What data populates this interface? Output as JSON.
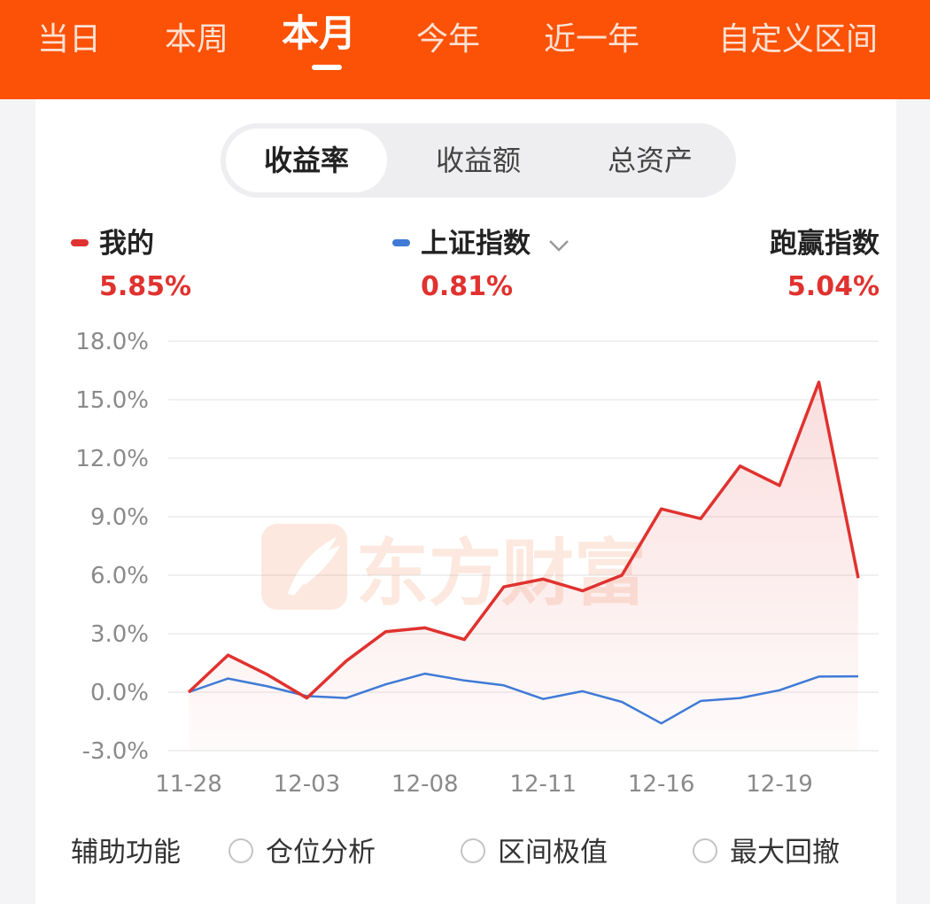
{
  "tabs": [
    {
      "label": "当日",
      "active": false
    },
    {
      "label": "本周",
      "active": false
    },
    {
      "label": "本月",
      "active": true
    },
    {
      "label": "今年",
      "active": false
    },
    {
      "label": "近一年",
      "active": false
    },
    {
      "label": "自定义区间",
      "active": false
    }
  ],
  "segments": [
    {
      "label": "收益率",
      "active": true
    },
    {
      "label": "收益额",
      "active": false
    },
    {
      "label": "总资产",
      "active": false
    }
  ],
  "legend": {
    "mine": {
      "label": "我的",
      "value": "5.85%",
      "color": "#e0322f"
    },
    "index": {
      "label": "上证指数",
      "value": "0.81%",
      "color": "#3f7ad6"
    },
    "beat": {
      "label": "跑赢指数",
      "value": "5.04%"
    }
  },
  "watermark": "东方财富",
  "auxiliary": {
    "title": "辅助功能",
    "options": [
      "仓位分析",
      "区间极值",
      "最大回撤"
    ]
  },
  "colors": {
    "brand": "#fb5207",
    "mine": "#e0322f",
    "index": "#3f7ad6"
  },
  "chart_data": {
    "type": "line",
    "ylim": [
      -3.0,
      18.0
    ],
    "yticks": [
      "18.0%",
      "15.0%",
      "12.0%",
      "9.0%",
      "6.0%",
      "3.0%",
      "0.0%",
      "-3.0%"
    ],
    "xticks": [
      "11-28",
      "12-03",
      "12-08",
      "12-11",
      "12-16",
      "12-19"
    ],
    "series": [
      {
        "name": "我的",
        "color": "#e0322f",
        "area": true,
        "values": [
          0.0,
          1.9,
          0.9,
          -0.3,
          1.6,
          3.1,
          3.3,
          2.7,
          5.4,
          5.8,
          5.2,
          6.0,
          9.4,
          8.9,
          11.6,
          10.6,
          15.9,
          5.85
        ]
      },
      {
        "name": "上证指数",
        "color": "#3f7ad6",
        "area": false,
        "values": [
          0.0,
          0.7,
          0.3,
          -0.2,
          -0.3,
          0.4,
          0.95,
          0.6,
          0.35,
          -0.35,
          0.05,
          -0.5,
          -1.6,
          -0.45,
          -0.3,
          0.1,
          0.8,
          0.81
        ]
      }
    ]
  }
}
